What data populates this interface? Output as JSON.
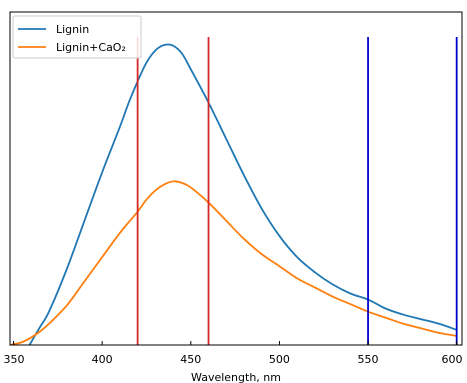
{
  "chart_data": {
    "type": "line",
    "title": "",
    "xlabel": "Wavelength, nm",
    "ylabel": "",
    "xlim": [
      348,
      603
    ],
    "ylim": [
      0,
      1.0
    ],
    "xticks": [
      350,
      400,
      450,
      500,
      550,
      600
    ],
    "xtick_labels": [
      "350",
      "400",
      "450",
      "500",
      "550",
      "600"
    ],
    "yticks": [],
    "grid": false,
    "legend": {
      "position": "top-left"
    },
    "series": [
      {
        "name": "Lignin",
        "color": "#1f77b4",
        "x": [
          358,
          365,
          370,
          380,
          390,
          400,
          410,
          415,
          420,
          425,
          430,
          435,
          440,
          445,
          450,
          460,
          470,
          480,
          490,
          500,
          510,
          520,
          530,
          540,
          550,
          560,
          570,
          580,
          590,
          600
        ],
        "y": [
          -0.01,
          0.06,
          0.11,
          0.25,
          0.41,
          0.57,
          0.72,
          0.8,
          0.87,
          0.932,
          0.972,
          0.99,
          0.988,
          0.962,
          0.91,
          0.8,
          0.68,
          0.56,
          0.45,
          0.36,
          0.29,
          0.24,
          0.2,
          0.17,
          0.15,
          0.12,
          0.1,
          0.085,
          0.07,
          0.05
        ]
      },
      {
        "name": "Lignin+CaO₂",
        "color": "#ff7f0e",
        "x": [
          348,
          355,
          360,
          365,
          370,
          380,
          390,
          400,
          410,
          420,
          425,
          430,
          435,
          440,
          445,
          450,
          460,
          470,
          480,
          490,
          500,
          510,
          520,
          530,
          540,
          550,
          560,
          570,
          580,
          590,
          600
        ],
        "y": [
          0.0,
          0.01,
          0.025,
          0.045,
          0.07,
          0.13,
          0.21,
          0.29,
          0.37,
          0.44,
          0.48,
          0.51,
          0.53,
          0.54,
          0.535,
          0.52,
          0.47,
          0.41,
          0.35,
          0.3,
          0.26,
          0.22,
          0.19,
          0.16,
          0.135,
          0.11,
          0.09,
          0.07,
          0.055,
          0.04,
          0.03
        ]
      }
    ],
    "vlines": [
      {
        "x": 420,
        "color": "#d62728"
      },
      {
        "x": 460,
        "color": "#d62728"
      },
      {
        "x": 550,
        "color": "#0000cc"
      },
      {
        "x": 600,
        "color": "#0000cc"
      }
    ]
  }
}
